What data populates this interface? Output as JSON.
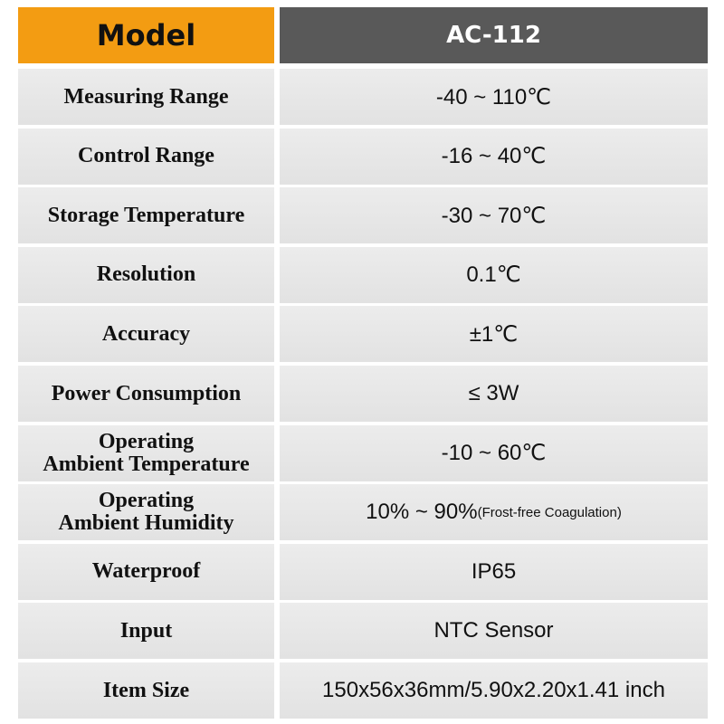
{
  "header": {
    "label": "Model",
    "value": "AC-112"
  },
  "rows": [
    {
      "label": [
        "Measuring Range"
      ],
      "value": "-40 ~ 110℃"
    },
    {
      "label": [
        "Control Range"
      ],
      "value": "-16 ~ 40℃"
    },
    {
      "label": [
        "Storage Temperature"
      ],
      "value": "-30 ~ 70℃"
    },
    {
      "label": [
        "Resolution"
      ],
      "value": "0.1℃"
    },
    {
      "label": [
        "Accuracy"
      ],
      "value": "±1℃"
    },
    {
      "label": [
        "Power Consumption"
      ],
      "value": "≤ 3W"
    },
    {
      "label": [
        "Operating",
        "Ambient Temperature"
      ],
      "value": "-10 ~  60℃"
    },
    {
      "label": [
        "Operating",
        "Ambient Humidity"
      ],
      "value": "10% ~ 90%",
      "note": "(Frost-free Coagulation)"
    },
    {
      "label": [
        "Waterproof"
      ],
      "value": "IP65"
    },
    {
      "label": [
        "Input"
      ],
      "value": "NTC Sensor"
    },
    {
      "label": [
        "Item Size"
      ],
      "value": "150x56x36mm/5.90x2.20x1.41 inch"
    }
  ]
}
